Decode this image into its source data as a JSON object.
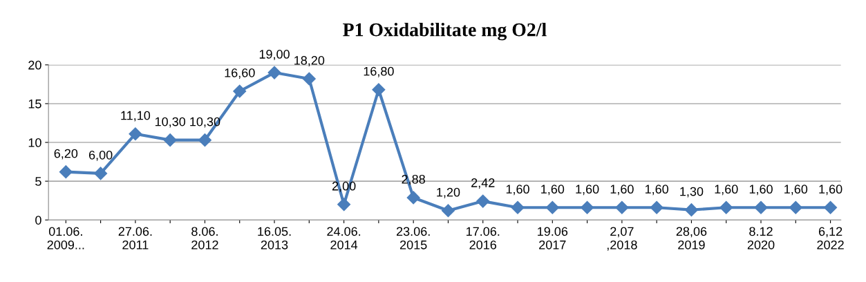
{
  "chart_data": {
    "type": "line",
    "title": "P1 Oxidabilitate mg O2/l",
    "categories": [
      "01.06.\n2009...",
      null,
      "27.06.\n2011",
      null,
      "8.06.\n2012",
      null,
      "16.05.\n2013",
      null,
      "24.06.\n2014",
      null,
      "23.06.\n2015",
      null,
      "17.06.\n2016",
      null,
      "19.06\n2017",
      null,
      "2,07\n,2018",
      null,
      "28,06\n2019",
      null,
      "8.12\n2020",
      null,
      "6,12\n2022"
    ],
    "series": [
      {
        "color": "#4a7ebb",
        "values": [
          6.2,
          6.0,
          11.1,
          10.3,
          10.3,
          16.6,
          19.0,
          18.2,
          2.0,
          16.8,
          2.88,
          1.2,
          2.42,
          1.6,
          1.6,
          1.6,
          1.6,
          1.6,
          1.3,
          1.6,
          1.6,
          1.6,
          1.6
        ],
        "value_labels": [
          "6,20",
          "6,00",
          "11,10",
          "10,30",
          "10,30",
          "16,60",
          "19,00",
          "18,20",
          "2,00",
          "16,80",
          "2,88",
          "1,20",
          "2,42",
          "1,60",
          "1,60",
          "1,60",
          "1,60",
          "1,60",
          "1,30",
          "1,60",
          "1,60",
          "1,60",
          "1,60"
        ]
      }
    ],
    "ylim": [
      0,
      20
    ],
    "yticks": [
      0,
      5,
      10,
      15,
      20
    ],
    "grid": "y",
    "marker": "diamond",
    "line_style": "solid",
    "legend": false
  }
}
